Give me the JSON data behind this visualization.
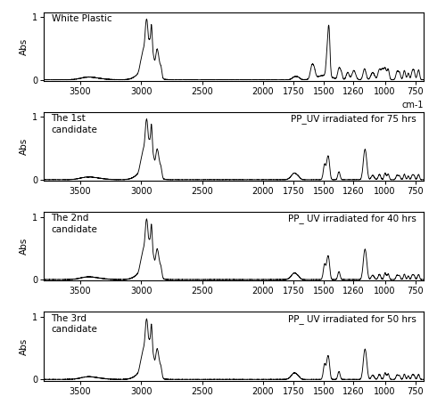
{
  "panels": [
    {
      "title_left": "White Plastic",
      "title_right": "",
      "ylabel": "Abs",
      "show_cm1": true
    },
    {
      "title_left": "The 1st\ncandidate",
      "title_right": "PP_UV irradiated for 75 hrs",
      "ylabel": "Abs",
      "show_cm1": false
    },
    {
      "title_left": "The 2nd\ncandidate",
      "title_right": "PP_ UV irradiated for 40 hrs",
      "ylabel": "Abs",
      "show_cm1": false
    },
    {
      "title_left": "The 3rd\ncandidate",
      "title_right": "PP_ UV irradiated for 50 hrs",
      "ylabel": "Abs",
      "show_cm1": false
    }
  ],
  "x_min": 680,
  "x_max": 3800,
  "xtick_positions": [
    3500,
    3000,
    2500,
    2000,
    1750,
    1500,
    1260,
    1000,
    750
  ],
  "xtick_labels": [
    "3500",
    "3000",
    "2500",
    "2000",
    "1750",
    "1500",
    "1260",
    "1000",
    "750"
  ],
  "ylim": [
    -0.02,
    1.08
  ],
  "yticks": [
    0,
    1
  ],
  "line_color": "#000000",
  "bg_color": "#ffffff"
}
